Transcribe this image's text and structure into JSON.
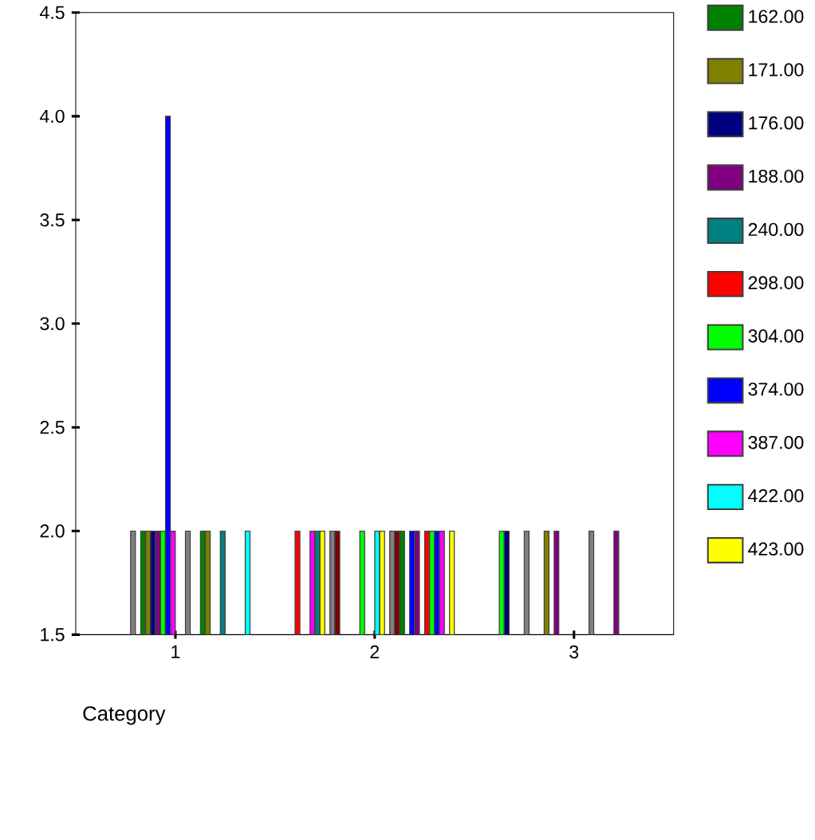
{
  "chart_data": {
    "type": "bar",
    "xlabel": "Category",
    "categories": [
      "1",
      "2",
      "3"
    ],
    "ylim": [
      1.5,
      4.5
    ],
    "yticks": [
      1.5,
      {
        "value": 2,
        "label": "2.0"
      },
      2.5,
      {
        "value": 3,
        "label": "3.0"
      },
      3.5,
      {
        "value": 4,
        "label": "4.0"
      },
      4.5
    ],
    "grid": false,
    "legend": "right",
    "series": [
      {
        "color": "#ff0000",
        "values": [
          null,
          2,
          null
        ]
      },
      {
        "color": "#00ff00",
        "values": [
          null,
          null,
          2
        ]
      },
      {
        "color": "#000080",
        "values": [
          null,
          null,
          2
        ]
      },
      {
        "color": "#ff00ff",
        "values": [
          null,
          2,
          null
        ]
      },
      {
        "color": "#008080",
        "values": [
          null,
          2,
          null
        ]
      },
      {
        "color": "#ffff00",
        "values": [
          null,
          2,
          null
        ]
      },
      {
        "color": "#808080",
        "values": [
          null,
          null,
          2
        ]
      },
      {
        "color": "#808080",
        "values": [
          2,
          2,
          null
        ]
      },
      {
        "color": "#800000",
        "values": [
          null,
          2,
          null
        ]
      },
      {
        "name": "162.00",
        "color": "#008000",
        "values": [
          2,
          null,
          null
        ]
      },
      {
        "name": "171.00",
        "color": "#808000",
        "values": [
          2,
          null,
          2
        ]
      },
      {
        "name": "176.00",
        "color": "#000080",
        "values": [
          2,
          null,
          null
        ]
      },
      {
        "name": "188.00",
        "color": "#800080",
        "values": [
          2,
          null,
          2
        ]
      },
      {
        "color": "#00ff00",
        "values": [
          2,
          2,
          null
        ]
      },
      {
        "color": "#0000ff",
        "values": [
          4,
          null,
          null
        ]
      },
      {
        "color": "#ff00ff",
        "values": [
          2,
          null,
          null
        ]
      },
      {
        "color": "#00ffff",
        "values": [
          null,
          2,
          null
        ]
      },
      {
        "color": "#ffff00",
        "values": [
          null,
          2,
          null
        ]
      },
      {
        "color": "#808080",
        "values": [
          2,
          null,
          null
        ]
      },
      {
        "color": "#808080",
        "values": [
          null,
          2,
          2
        ]
      },
      {
        "color": "#800000",
        "values": [
          null,
          2,
          null
        ]
      },
      {
        "color": "#008000",
        "values": [
          2,
          2,
          null
        ]
      },
      {
        "color": "#808000",
        "values": [
          2,
          null,
          null
        ]
      },
      {
        "color": "#0000ff",
        "values": [
          null,
          2,
          null
        ]
      },
      {
        "color": "#800080",
        "values": [
          null,
          2,
          2
        ]
      },
      {
        "name": "240.00",
        "color": "#008080",
        "values": [
          2,
          null,
          null
        ]
      },
      {
        "name": "298.00",
        "color": "#ff0000",
        "values": [
          null,
          2,
          null
        ]
      },
      {
        "name": "304.00",
        "color": "#00ff00",
        "values": [
          null,
          2,
          null
        ]
      },
      {
        "name": "374.00",
        "color": "#0000ff",
        "values": [
          null,
          2,
          null
        ]
      },
      {
        "name": "387.00",
        "color": "#ff00ff",
        "values": [
          null,
          2,
          null
        ]
      },
      {
        "name": "422.00",
        "color": "#00ffff",
        "values": [
          2,
          null,
          null
        ]
      },
      {
        "name": "423.00",
        "color": "#ffff00",
        "values": [
          null,
          2,
          null
        ]
      }
    ]
  }
}
